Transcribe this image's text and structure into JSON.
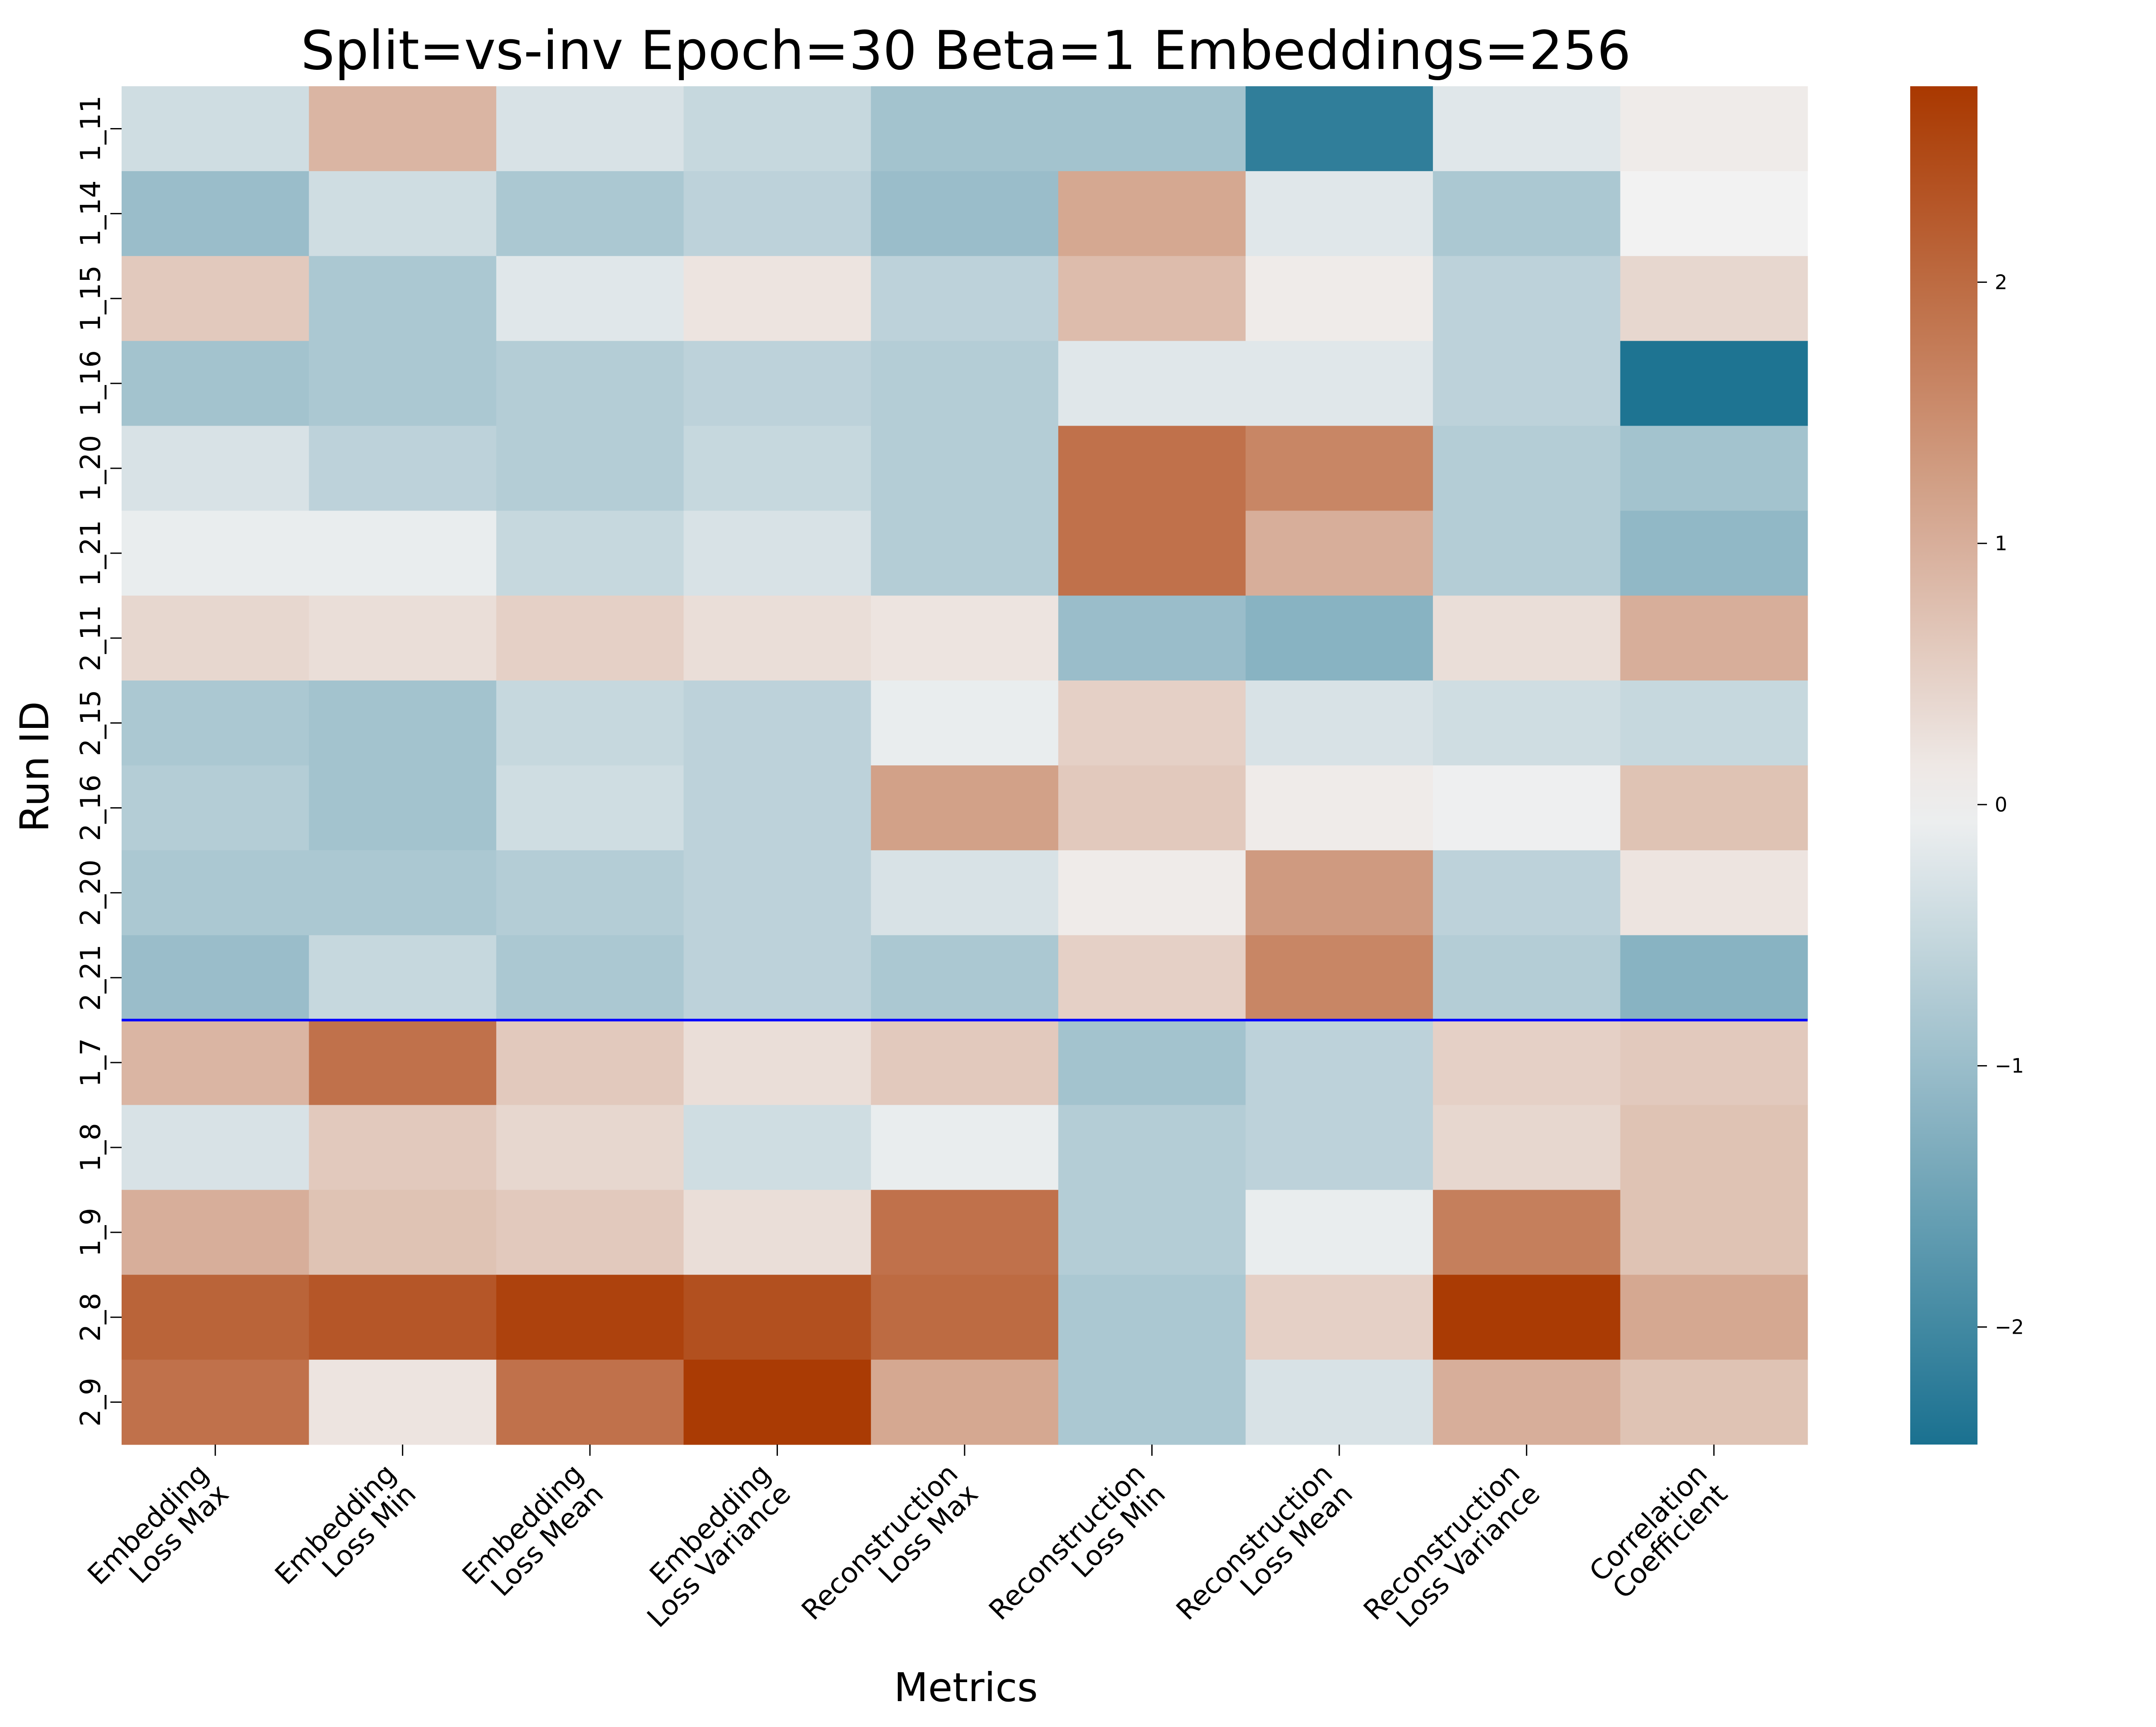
{
  "chart_data": {
    "type": "heatmap",
    "title": "Split=vs-inv Epoch=30 Beta=1 Embeddings=256",
    "xlabel": "Metrics",
    "ylabel": "Run ID",
    "columns": [
      [
        "Embedding",
        "Loss Max"
      ],
      [
        "Embedding",
        "Loss Min"
      ],
      [
        "Embedding",
        "Loss Mean"
      ],
      [
        "Embedding",
        "Loss Variance"
      ],
      [
        "Reconstruction",
        "Loss Max"
      ],
      [
        "Reconstruction",
        "Loss Min"
      ],
      [
        "Reconstruction",
        "Loss Mean"
      ],
      [
        "Reconstruction",
        "Loss Variance"
      ],
      [
        "Correlation",
        "Coefficient"
      ]
    ],
    "rows": [
      "1_11",
      "1_14",
      "1_15",
      "1_16",
      "1_20",
      "1_21",
      "2_11",
      "2_15",
      "2_16",
      "2_20",
      "2_21",
      "1_7",
      "1_8",
      "1_9",
      "2_8",
      "2_9"
    ],
    "values": [
      [
        -0.4,
        0.9,
        -0.3,
        -0.5,
        -0.9,
        -0.9,
        -2.2,
        -0.2,
        0.1
      ],
      [
        -1.0,
        -0.4,
        -0.8,
        -0.6,
        -1.0,
        1.1,
        -0.2,
        -0.8,
        0.0
      ],
      [
        0.6,
        -0.8,
        -0.2,
        0.2,
        -0.6,
        0.8,
        0.1,
        -0.6,
        0.4
      ],
      [
        -0.9,
        -0.8,
        -0.7,
        -0.6,
        -0.7,
        -0.2,
        -0.2,
        -0.6,
        -2.4
      ],
      [
        -0.3,
        -0.6,
        -0.7,
        -0.5,
        -0.7,
        1.9,
        1.6,
        -0.7,
        -0.9
      ],
      [
        -0.1,
        -0.1,
        -0.5,
        -0.3,
        -0.7,
        1.9,
        1.0,
        -0.7,
        -1.1
      ],
      [
        0.4,
        0.3,
        0.5,
        0.3,
        0.2,
        -1.0,
        -1.2,
        0.3,
        1.0
      ],
      [
        -0.8,
        -0.9,
        -0.5,
        -0.6,
        -0.1,
        0.5,
        -0.3,
        -0.4,
        -0.5
      ],
      [
        -0.7,
        -0.9,
        -0.4,
        -0.6,
        1.2,
        0.6,
        0.1,
        -0.05,
        0.7
      ],
      [
        -0.8,
        -0.8,
        -0.7,
        -0.6,
        -0.3,
        0.1,
        1.3,
        -0.6,
        0.2
      ],
      [
        -1.0,
        -0.5,
        -0.8,
        -0.6,
        -0.8,
        0.5,
        1.6,
        -0.7,
        -1.2
      ],
      [
        0.9,
        1.9,
        0.6,
        0.3,
        0.6,
        -0.9,
        -0.6,
        0.5,
        0.6
      ],
      [
        -0.3,
        0.6,
        0.4,
        -0.4,
        -0.1,
        -0.7,
        -0.6,
        0.4,
        0.7
      ],
      [
        1.0,
        0.7,
        0.6,
        0.3,
        1.9,
        -0.7,
        -0.1,
        1.7,
        0.7
      ],
      [
        2.1,
        2.3,
        2.6,
        2.4,
        2.0,
        -0.8,
        0.5,
        2.7,
        1.1
      ],
      [
        1.9,
        0.2,
        1.9,
        2.7,
        1.1,
        -0.8,
        -0.3,
        1.0,
        0.7
      ]
    ],
    "separator_after_row": "2_21",
    "separator_color": "#0000ff",
    "colorbar": {
      "min": -2.45,
      "max": 2.75,
      "ticks": [
        -2,
        -1,
        0,
        1,
        2
      ],
      "tick_labels": [
        "−2",
        "−1",
        "0",
        "1",
        "2"
      ]
    },
    "colormap": {
      "low": "#1a7190",
      "mid": "#f2f2f2",
      "high": "#a93800"
    }
  }
}
